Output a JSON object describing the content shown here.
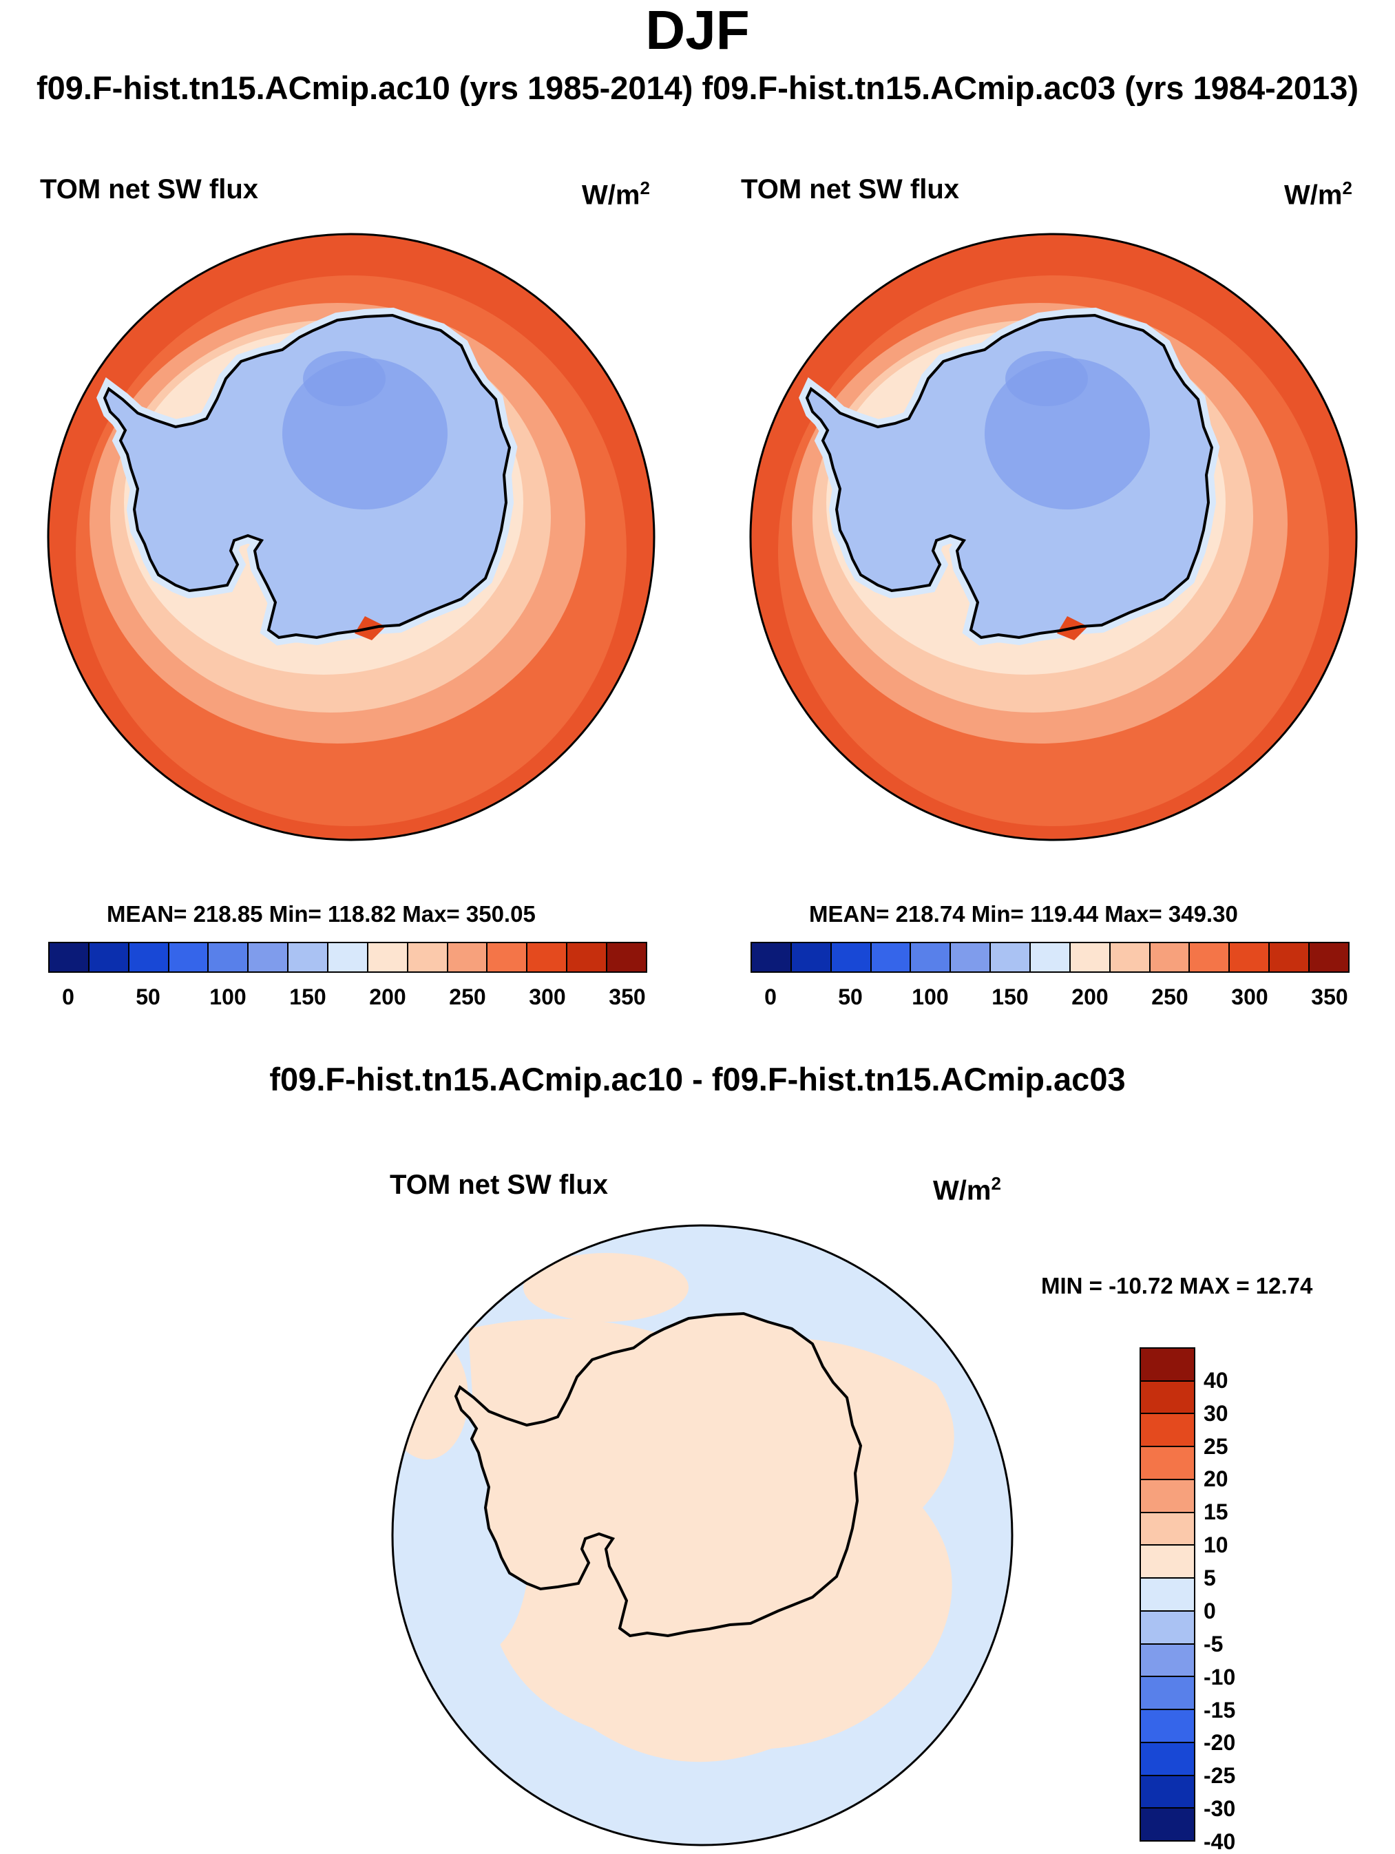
{
  "title": "DJF",
  "subtitle": "f09.F-hist.tn15.ACmip.ac10 (yrs 1985-2014) f09.F-hist.tn15.ACmip.ac03 (yrs 1984-2013)",
  "panels": [
    {
      "variable": "TOM net SW flux",
      "units_base": "W/m",
      "units_exp": "2",
      "stats": "MEAN= 218.85  Min= 118.82  Max= 350.05"
    },
    {
      "variable": "TOM net SW flux",
      "units_base": "W/m",
      "units_exp": "2",
      "stats": "MEAN= 218.74  Min= 119.44  Max= 349.30"
    }
  ],
  "diff_panel": {
    "title": "f09.F-hist.tn15.ACmip.ac10 - f09.F-hist.tn15.ACmip.ac03",
    "variable": "TOM net SW flux",
    "units_base": "W/m",
    "units_exp": "2",
    "stats": "MIN = -10.72 MAX =  12.74"
  },
  "abs_colorbar": {
    "colors": [
      "#0a1a78",
      "#0b2fae",
      "#1848d6",
      "#3565ea",
      "#5880ea",
      "#7f9cec",
      "#aac2f3",
      "#d8e8fb",
      "#fde4d0",
      "#fbc9ab",
      "#f7a17c",
      "#f47548",
      "#e44a1e",
      "#c62f0d",
      "#8e1409"
    ],
    "ticks": [
      "0",
      "50",
      "100",
      "150",
      "200",
      "250",
      "300",
      "350"
    ]
  },
  "diff_colorbar": {
    "colors": [
      "#8e1409",
      "#c62f0d",
      "#e44a1e",
      "#f47548",
      "#f7a17c",
      "#fbc9ab",
      "#fde4d0",
      "#d8e8fb",
      "#aac2f3",
      "#7f9cec",
      "#5880ea",
      "#3565ea",
      "#1848d6",
      "#0b2fae",
      "#0a1a78"
    ],
    "ticks": [
      "40",
      "30",
      "25",
      "20",
      "15",
      "10",
      "5",
      "0",
      "-5",
      "-10",
      "-15",
      "-20",
      "-25",
      "-30",
      "-40"
    ]
  },
  "map_colors": {
    "outer_ring": "#f06a3c",
    "ring_2": "#f47548",
    "ring_3": "#f7a17c",
    "ring_4": "#fbc9ab",
    "ring_5": "#fde4d0",
    "sea_ice_edge": "#d8e8fb",
    "continent": "#aac2f3",
    "plateau": "#7f9cec",
    "peak": "#e44a1e",
    "diff_ocean": "#d8e8fb",
    "diff_land": "#fde4d0"
  }
}
